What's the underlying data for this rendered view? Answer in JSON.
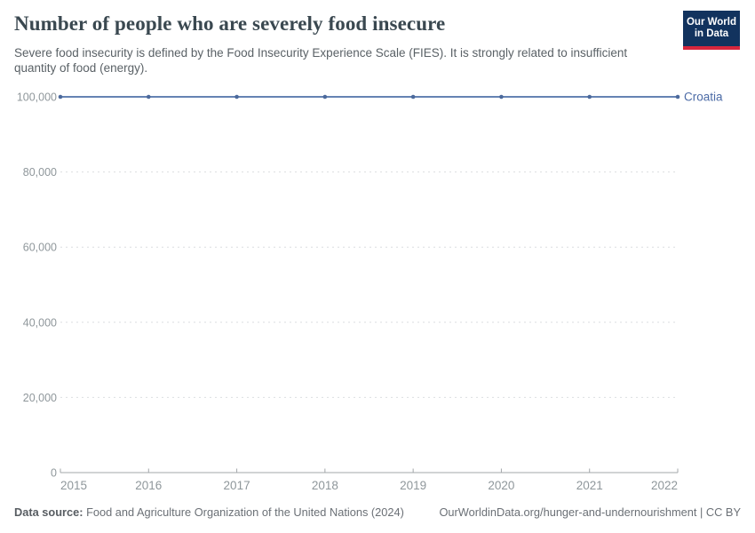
{
  "logo": {
    "line1": "Our World",
    "line2": "in Data",
    "bg_color": "#12335e",
    "stripe_color": "#d7263d"
  },
  "chart_data": {
    "type": "line",
    "title": "Number of people who are severely food insecure",
    "subtitle": "Severe food insecurity is defined by the Food Insecurity Experience Scale (FIES). It is strongly related to insufficient quantity of food (energy).",
    "x": [
      2015,
      2016,
      2017,
      2018,
      2019,
      2020,
      2021,
      2022
    ],
    "series": [
      {
        "name": "Croatia",
        "values": [
          100000,
          100000,
          100000,
          100000,
          100000,
          100000,
          100000,
          100000
        ],
        "line_color": "#6583b3",
        "point_color": "#4c6a9c",
        "label_color": "#4c6ba6"
      }
    ],
    "ylim": [
      0,
      100000
    ],
    "yticks": [
      {
        "value": 0,
        "label": "0"
      },
      {
        "value": 20000,
        "label": "20,000"
      },
      {
        "value": 40000,
        "label": "40,000"
      },
      {
        "value": 60000,
        "label": "60,000"
      },
      {
        "value": 80000,
        "label": "80,000"
      },
      {
        "value": 100000,
        "label": "100,000"
      }
    ],
    "grid": "horizontal-dashed",
    "legend_position": "end-of-line-label"
  },
  "footer": {
    "datasource_label": "Data source:",
    "datasource_rest": " Food and Agriculture Organization of the United Nations (2024)",
    "right": "OurWorldinData.org/hunger-and-undernourishment | CC BY"
  }
}
